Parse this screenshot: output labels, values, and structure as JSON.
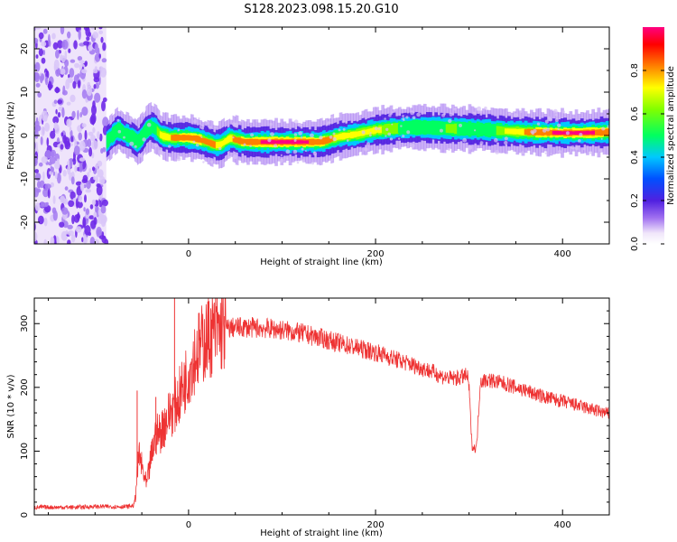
{
  "title": "S128.2023.098.15.20.G10",
  "chart_data": [
    {
      "type": "heatmap",
      "xlabel": "Height of straight line (km)",
      "ylabel": "Frequency (Hz)",
      "xlim": [
        -165,
        450
      ],
      "ylim": [
        -25,
        25
      ],
      "xticks": [
        "0",
        "200",
        "400"
      ],
      "yticks": [
        "-20",
        "-10",
        "0",
        "10",
        "20"
      ],
      "colorbar": {
        "label": "Normalized spectral amplitude",
        "range": [
          0,
          1
        ],
        "ticks": [
          "0.0",
          "0.2",
          "0.4",
          "0.6",
          "0.8"
        ]
      },
      "noise_region_x": [
        -165,
        -88
      ],
      "ridge_frequency": {
        "x": [
          -88,
          -80,
          -75,
          -70,
          -65,
          -60,
          -55,
          -50,
          -45,
          -40,
          -35,
          -30,
          -20,
          -10,
          0,
          10,
          20,
          30,
          35,
          40,
          45,
          50,
          60,
          80,
          100,
          120,
          140,
          150,
          160,
          170,
          180,
          190,
          200,
          220,
          240,
          260,
          280,
          300,
          320,
          340,
          360,
          380,
          400,
          420,
          440,
          450
        ],
        "y": [
          -1.5,
          0.5,
          1.5,
          0.5,
          0,
          -0.5,
          -1.5,
          -0.5,
          1.5,
          2,
          1.5,
          0,
          -0.5,
          -0.5,
          -0.5,
          -0.8,
          -1.5,
          -2.3,
          -2,
          -1.2,
          -0.5,
          -1,
          -1.5,
          -1.5,
          -1.5,
          -1.5,
          -1.5,
          -1,
          -0.3,
          0,
          0.3,
          0.8,
          1.2,
          1.6,
          1.9,
          1.8,
          1.6,
          1.5,
          1.3,
          1.0,
          0.8,
          0.7,
          0.6,
          0.6,
          0.7,
          0.8
        ]
      },
      "ridge_amplitude": {
        "x": [
          -88,
          -60,
          -40,
          -20,
          0,
          20,
          40,
          60,
          100,
          140,
          160,
          180,
          200,
          240,
          280,
          320,
          360,
          400,
          450
        ],
        "y": [
          0.35,
          0.55,
          0.7,
          0.9,
          0.95,
          0.9,
          0.85,
          0.95,
          1.0,
          0.95,
          0.85,
          0.8,
          0.8,
          0.7,
          0.75,
          0.7,
          0.9,
          1.0,
          0.95
        ]
      }
    },
    {
      "type": "line",
      "xlabel": "Height of straight line (km)",
      "ylabel": "SNR (10 * v/v)",
      "xlim": [
        -165,
        450
      ],
      "ylim": [
        0,
        340
      ],
      "xticks": [
        "0",
        "200",
        "400"
      ],
      "yticks": [
        "0",
        "100",
        "200",
        "300"
      ],
      "color": "#ee3333",
      "series": [
        {
          "x": [
            -165,
            -140,
            -120,
            -100,
            -80,
            -65,
            -58,
            -55,
            -53,
            -50,
            -45,
            -40,
            -35,
            -30,
            -25,
            -20,
            -15,
            -10,
            -5,
            0,
            5,
            10,
            15,
            20,
            30,
            40,
            50,
            60,
            80,
            100,
            120,
            140,
            160,
            180,
            200,
            220,
            240,
            260,
            270,
            280,
            290,
            295,
            298,
            300,
            303,
            305,
            308,
            312,
            320,
            340,
            360,
            380,
            400,
            420,
            440,
            450
          ],
          "y": [
            12,
            12,
            12,
            13,
            13,
            13,
            15,
            60,
            95,
            75,
            45,
            90,
            125,
            130,
            145,
            160,
            170,
            185,
            205,
            225,
            245,
            258,
            268,
            278,
            288,
            292,
            294,
            294,
            293,
            290,
            285,
            278,
            270,
            262,
            255,
            245,
            235,
            225,
            218,
            214,
            215,
            218,
            218,
            200,
            110,
            105,
            105,
            210,
            212,
            205,
            195,
            185,
            178,
            170,
            162,
            158
          ]
        }
      ],
      "spikes": [
        {
          "x": -55,
          "y": 195
        },
        {
          "x": -35,
          "y": 185
        },
        {
          "x": -15,
          "y": 340
        }
      ]
    }
  ]
}
